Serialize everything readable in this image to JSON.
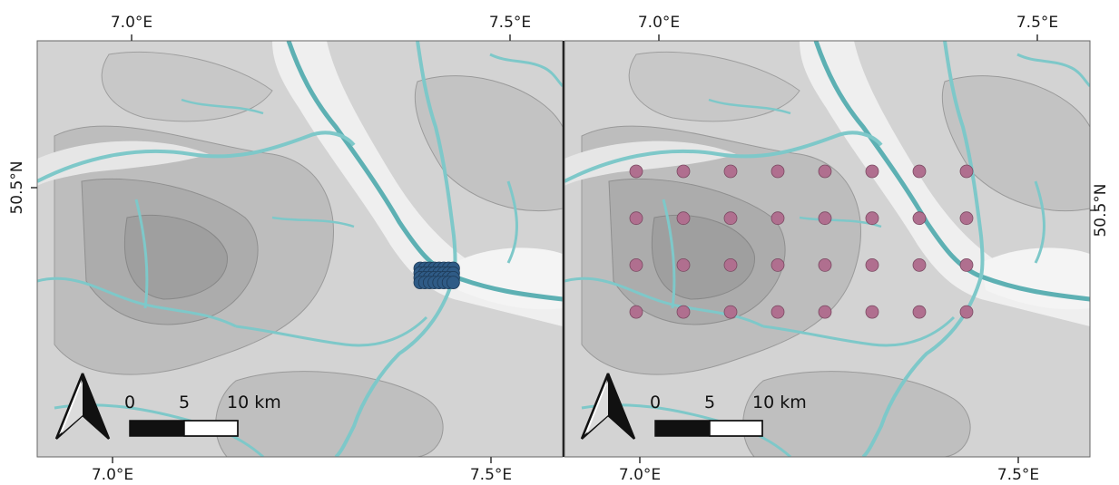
{
  "figure": {
    "panels": [
      {
        "id": "left",
        "top_ticks": [
          "7.0°E",
          "7.5°E"
        ],
        "bottom_ticks": [
          "7.0°E",
          "7.5°E"
        ],
        "side_tick": "50.5°N",
        "scale": {
          "labels": [
            "0",
            "5",
            "10 km"
          ]
        },
        "markers": {
          "color": "#2f5b86",
          "grid_rows": 4,
          "grid_cols": 8
        }
      },
      {
        "id": "right",
        "top_ticks": [
          "7.0°E",
          "7.5°E"
        ],
        "bottom_ticks": [
          "7.0°E",
          "7.5°E"
        ],
        "side_tick": "50.5°N",
        "scale": {
          "labels": [
            "0",
            "5",
            "10 km"
          ]
        },
        "markers": {
          "color": "#b06f8f",
          "grid_rows": 4,
          "grid_cols": 8
        }
      }
    ],
    "colors": {
      "river": "#7ec8c9",
      "river_dark": "#4aa6aa",
      "valley": "#f2f2f2",
      "terrain_light": "#d9d9d9",
      "terrain_mid": "#c7c7c7",
      "terrain_dark": "#b3b3b3",
      "contour": "#9a9a9a"
    }
  }
}
